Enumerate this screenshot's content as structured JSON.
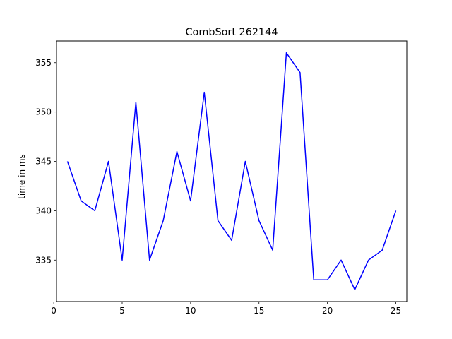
{
  "chart_data": {
    "type": "line",
    "title": "CombSort 262144",
    "xlabel": "",
    "ylabel": "time in ms",
    "xlim": [
      0.2,
      25.8
    ],
    "ylim": [
      330.8,
      357.2
    ],
    "xticks": [
      0,
      5,
      10,
      15,
      20,
      25
    ],
    "yticks": [
      335,
      340,
      345,
      350,
      355
    ],
    "grid": false,
    "series": [
      {
        "color": "#0000ff",
        "x": [
          1,
          2,
          3,
          4,
          5,
          6,
          7,
          8,
          9,
          10,
          11,
          12,
          13,
          14,
          15,
          16,
          17,
          18,
          19,
          20,
          21,
          22,
          23,
          24,
          25
        ],
        "values": [
          345,
          341,
          340,
          345,
          335,
          351,
          335,
          339,
          346,
          341,
          352,
          339,
          337,
          345,
          339,
          336,
          356,
          354,
          333,
          333,
          335,
          332,
          335,
          336,
          340
        ]
      }
    ]
  }
}
